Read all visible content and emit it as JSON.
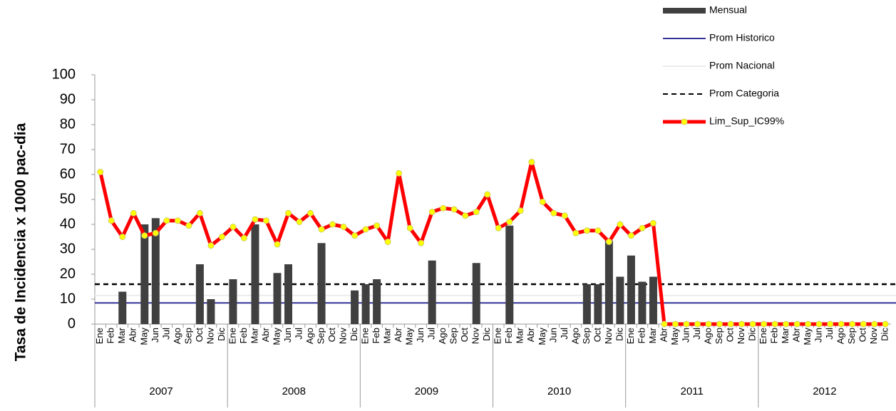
{
  "chart_data": {
    "type": "bar_line",
    "y_axis_label": "Tasa de Incidencia x 1000 pac-dia",
    "categories": [
      "Ene",
      "Feb",
      "Mar",
      "Abr",
      "May",
      "Jun",
      "Jul",
      "Ago",
      "Sep",
      "Oct",
      "Nov",
      "Dic",
      "Ene",
      "Feb",
      "Mar",
      "Abr",
      "May",
      "Jun",
      "Jul",
      "Ago",
      "Sep",
      "Oct",
      "Nov",
      "Dic",
      "Ene",
      "Feb",
      "Mar",
      "Abr",
      "May",
      "Jun",
      "Jul",
      "Ago",
      "Sep",
      "Oct",
      "Nov",
      "Dic",
      "Ene",
      "Feb",
      "Mar",
      "Abr",
      "May",
      "Jun",
      "Jul",
      "Ago",
      "Sep",
      "Oct",
      "Nov",
      "Dic",
      "Ene",
      "Feb",
      "Mar",
      "Abr",
      "May",
      "Jun",
      "Jul",
      "Ago",
      "Sep",
      "Oct",
      "Nov",
      "Dic",
      "Ene",
      "Feb",
      "Mar",
      "Abr",
      "May",
      "Jun",
      "Jul",
      "Ago",
      "Sep",
      "Oct",
      "Nov",
      "Dic"
    ],
    "years": [
      "2007",
      "2008",
      "2009",
      "2010",
      "2011",
      "2012"
    ],
    "ylim": [
      0,
      100
    ],
    "yticks": [
      0,
      10,
      20,
      30,
      40,
      50,
      60,
      70,
      80,
      90,
      100
    ],
    "series": [
      {
        "name": "Mensual",
        "type": "bar",
        "color": "#404040",
        "values": [
          0,
          0,
          13,
          0,
          40,
          42.5,
          0,
          0,
          0,
          24,
          10,
          0,
          18,
          0,
          40,
          0,
          20.5,
          24,
          0,
          0,
          32.5,
          0,
          0,
          13.5,
          16,
          18,
          0,
          0,
          0,
          0,
          25.5,
          0,
          0,
          0,
          24.5,
          0,
          0,
          39.5,
          0,
          0,
          0,
          0,
          0,
          0,
          16,
          16,
          33.5,
          19,
          27.5,
          17,
          19,
          0,
          0,
          0,
          0,
          0,
          0,
          0,
          0,
          0,
          0,
          0,
          0,
          0,
          0,
          0,
          0,
          0,
          0,
          0,
          0,
          0
        ]
      },
      {
        "name": "Prom Historico",
        "type": "hline",
        "color": "#333399",
        "value": 8.5
      },
      {
        "name": "Prom Nacional",
        "type": "hline",
        "color": "#ececec",
        "value": 11.5
      },
      {
        "name": "Prom Categoria",
        "type": "hline",
        "color": "#000000",
        "dashed": true,
        "value": 16
      },
      {
        "name": "Lim_Sup_IC99%",
        "type": "line",
        "color": "#ff0000",
        "marker_color": "#ffff00",
        "values": [
          61,
          41.5,
          35,
          44.5,
          35.5,
          36.5,
          41.5,
          41.5,
          39.5,
          44.5,
          31.5,
          35,
          39,
          34.5,
          42,
          41.5,
          32,
          44.5,
          41,
          44.5,
          38,
          40,
          39,
          35.5,
          38,
          39.5,
          33,
          60.5,
          38.5,
          32.5,
          45,
          46.5,
          46,
          43.5,
          45,
          52,
          38.5,
          41,
          45.5,
          65,
          49,
          44.5,
          43.5,
          36.5,
          37.5,
          37.5,
          33,
          40,
          35.5,
          38.5,
          40.5,
          0,
          0,
          0,
          0,
          0,
          0,
          0,
          0,
          0,
          0,
          0,
          0,
          0,
          0,
          0,
          0,
          0,
          0,
          0,
          0,
          0
        ]
      }
    ]
  }
}
